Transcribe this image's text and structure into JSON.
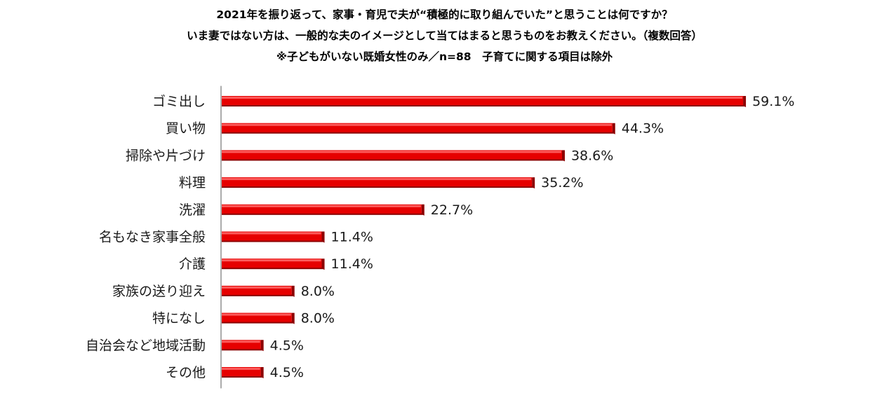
{
  "titles": [
    "2021年を振り返って、家事・育児で夫が“積極的に取り組んでいた”と思うことは何ですか？",
    "いま妻ではない方は、一般的な夫のイメージとして当てはまると思うものをお教えください。（複数回答）",
    "※子どもがいない既婚女性のみ／n=88　子育てに関する項目は除外"
  ],
  "colors": {
    "bar_main": "#e60000",
    "bar_top": "#ff6a6a",
    "bar_side": "#8c0000",
    "axis": "#808080"
  },
  "chart_data": {
    "type": "bar",
    "orientation": "horizontal",
    "title": "2021年を振り返って、家事・育児で夫が“積極的に取り組んでいた”と思うことは何ですか？",
    "categories": [
      "ゴミ出し",
      "買い物",
      "掃除や片づけ",
      "料理",
      "洗濯",
      "名もなき家事全般",
      "介護",
      "家族の送り迎え",
      "特になし",
      "自治会など地域活動",
      "その他"
    ],
    "values": [
      59.1,
      44.3,
      38.6,
      35.2,
      22.7,
      11.4,
      11.4,
      8.0,
      8.0,
      4.5,
      4.5
    ],
    "value_labels": [
      "59.1%",
      "44.3%",
      "38.6%",
      "35.2%",
      "22.7%",
      "11.4%",
      "11.4%",
      "8.0%",
      "8.0%",
      "4.5%",
      "4.5%"
    ],
    "unit": "%",
    "xlim": [
      0,
      60
    ],
    "grid": false,
    "legend": "none"
  }
}
